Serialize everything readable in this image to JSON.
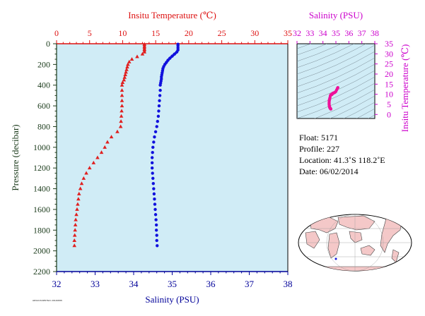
{
  "chart_data": [
    {
      "type": "scatter",
      "name": "profile",
      "top_axis_title": "Insitu Temperature (℃)",
      "bottom_axis_title": "Salinity (PSU)",
      "left_axis_title": "Pressure (decibar)",
      "temp_lim": [
        0,
        35
      ],
      "temp_ticks": [
        "0",
        "5",
        "10",
        "15",
        "20",
        "25",
        "30",
        "35"
      ],
      "sal_lim": [
        32,
        38
      ],
      "sal_ticks": [
        "32",
        "33",
        "34",
        "35",
        "36",
        "37",
        "38"
      ],
      "pressure_lim": [
        0,
        2200
      ],
      "pressure_ticks": [
        "0",
        "200",
        "400",
        "600",
        "800",
        "1000",
        "1200",
        "1400",
        "1600",
        "1800",
        "2000",
        "2200"
      ],
      "colors": {
        "temperature": "#e02020",
        "salinity": "#1010dd",
        "background": "#d0ecf6",
        "temp_axis": "#dd1111",
        "sal_axis": "#000099",
        "pressure_axis": "#1a3a1a"
      },
      "series": [
        {
          "axis": "temperature",
          "marker": "triangle",
          "points": [
            [
              13.3,
              5
            ],
            [
              13.3,
              30
            ],
            [
              13.3,
              55
            ],
            [
              13.3,
              80
            ],
            [
              13.0,
              100
            ],
            [
              12.2,
              125
            ],
            [
              11.4,
              150
            ],
            [
              11.0,
              175
            ],
            [
              10.8,
              200
            ],
            [
              10.7,
              225
            ],
            [
              10.6,
              250
            ],
            [
              10.5,
              275
            ],
            [
              10.4,
              300
            ],
            [
              10.3,
              325
            ],
            [
              10.2,
              350
            ],
            [
              10.0,
              375
            ],
            [
              9.9,
              400
            ],
            [
              9.9,
              450
            ],
            [
              9.9,
              500
            ],
            [
              9.9,
              550
            ],
            [
              9.9,
              600
            ],
            [
              9.85,
              650
            ],
            [
              9.8,
              700
            ],
            [
              9.75,
              750
            ],
            [
              9.7,
              800
            ],
            [
              9.2,
              850
            ],
            [
              8.3,
              900
            ],
            [
              7.7,
              950
            ],
            [
              7.3,
              1000
            ],
            [
              6.8,
              1050
            ],
            [
              6.2,
              1100
            ],
            [
              5.6,
              1150
            ],
            [
              5.0,
              1200
            ],
            [
              4.5,
              1250
            ],
            [
              4.1,
              1300
            ],
            [
              3.8,
              1350
            ],
            [
              3.6,
              1400
            ],
            [
              3.4,
              1450
            ],
            [
              3.3,
              1500
            ],
            [
              3.2,
              1550
            ],
            [
              3.1,
              1600
            ],
            [
              3.0,
              1650
            ],
            [
              2.9,
              1700
            ],
            [
              2.85,
              1750
            ],
            [
              2.8,
              1800
            ],
            [
              2.75,
              1850
            ],
            [
              2.7,
              1900
            ],
            [
              2.7,
              1950
            ]
          ]
        },
        {
          "axis": "salinity",
          "marker": "circle",
          "points": [
            [
              35.15,
              5
            ],
            [
              35.15,
              20
            ],
            [
              35.15,
              40
            ],
            [
              35.15,
              60
            ],
            [
              35.12,
              80
            ],
            [
              35.06,
              100
            ],
            [
              35.0,
              120
            ],
            [
              34.94,
              140
            ],
            [
              34.89,
              160
            ],
            [
              34.85,
              180
            ],
            [
              34.81,
              200
            ],
            [
              34.78,
              220
            ],
            [
              34.76,
              240
            ],
            [
              34.75,
              260
            ],
            [
              34.74,
              280
            ],
            [
              34.73,
              300
            ],
            [
              34.72,
              320
            ],
            [
              34.72,
              340
            ],
            [
              34.71,
              360
            ],
            [
              34.7,
              380
            ],
            [
              34.69,
              400
            ],
            [
              34.69,
              450
            ],
            [
              34.68,
              500
            ],
            [
              34.67,
              550
            ],
            [
              34.66,
              600
            ],
            [
              34.65,
              650
            ],
            [
              34.64,
              700
            ],
            [
              34.62,
              750
            ],
            [
              34.6,
              800
            ],
            [
              34.57,
              850
            ],
            [
              34.54,
              900
            ],
            [
              34.52,
              950
            ],
            [
              34.5,
              1000
            ],
            [
              34.49,
              1050
            ],
            [
              34.48,
              1100
            ],
            [
              34.48,
              1150
            ],
            [
              34.48,
              1200
            ],
            [
              34.49,
              1250
            ],
            [
              34.5,
              1300
            ],
            [
              34.51,
              1350
            ],
            [
              34.52,
              1400
            ],
            [
              34.53,
              1450
            ],
            [
              34.54,
              1500
            ],
            [
              34.55,
              1550
            ],
            [
              34.56,
              1600
            ],
            [
              34.57,
              1650
            ],
            [
              34.58,
              1700
            ],
            [
              34.59,
              1750
            ],
            [
              34.59,
              1800
            ],
            [
              34.6,
              1850
            ],
            [
              34.6,
              1900
            ],
            [
              34.61,
              1950
            ]
          ]
        }
      ]
    },
    {
      "type": "scatter",
      "name": "ts",
      "top_axis_title": "Salinity (PSU)",
      "right_axis_title": "Insitu Temperature (℃)",
      "sal_lim": [
        32,
        38
      ],
      "sal_ticks": [
        "32",
        "33",
        "34",
        "35",
        "36",
        "37",
        "38"
      ],
      "temp_lim": [
        -2,
        35
      ],
      "temp_ticks": [
        "0",
        "5",
        "10",
        "15",
        "20",
        "25",
        "30",
        "35"
      ],
      "axis_color": "#cc00cc",
      "marker_color": "#ee1199",
      "points": [
        [
          35.15,
          13.3
        ],
        [
          35.12,
          13.0
        ],
        [
          35.06,
          12.2
        ],
        [
          35.0,
          11.4
        ],
        [
          34.94,
          11.0
        ],
        [
          34.89,
          10.8
        ],
        [
          34.85,
          10.7
        ],
        [
          34.81,
          10.6
        ],
        [
          34.78,
          10.5
        ],
        [
          34.75,
          10.4
        ],
        [
          34.73,
          10.3
        ],
        [
          34.71,
          10.0
        ],
        [
          34.69,
          9.9
        ],
        [
          34.67,
          9.85
        ],
        [
          34.64,
          9.8
        ],
        [
          34.6,
          9.7
        ],
        [
          34.57,
          9.2
        ],
        [
          34.54,
          8.3
        ],
        [
          34.52,
          7.7
        ],
        [
          34.5,
          7.3
        ],
        [
          34.49,
          6.8
        ],
        [
          34.48,
          6.2
        ],
        [
          34.48,
          5.6
        ],
        [
          34.48,
          5.0
        ],
        [
          34.49,
          4.5
        ],
        [
          34.5,
          4.1
        ],
        [
          34.51,
          3.8
        ],
        [
          34.52,
          3.6
        ],
        [
          34.53,
          3.4
        ],
        [
          34.54,
          3.3
        ],
        [
          34.55,
          3.2
        ],
        [
          34.56,
          3.1
        ],
        [
          34.57,
          3.0
        ],
        [
          34.58,
          2.9
        ],
        [
          34.59,
          2.8
        ],
        [
          34.6,
          2.75
        ],
        [
          34.61,
          2.7
        ]
      ]
    }
  ],
  "info": {
    "float": "Float:  5171",
    "profile": "Profile:  227",
    "location": "Location:  41.3˚S  118.2˚E",
    "date": "Date:  06/02/2014"
  },
  "footer_tag": "ARGO/JAMSTEC 20140606"
}
